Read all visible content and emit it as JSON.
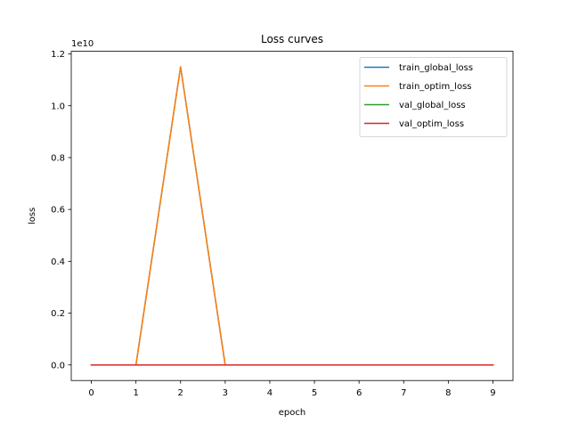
{
  "chart_data": {
    "type": "line",
    "title": "Loss curves",
    "xlabel": "epoch",
    "ylabel": "loss",
    "x": [
      0,
      1,
      2,
      3,
      4,
      5,
      6,
      7,
      8,
      9
    ],
    "xlim": [
      -0.45,
      9.45
    ],
    "ylim": [
      -0.06,
      1.21
    ],
    "y_offset_label": "1e10",
    "x_ticks": [
      "0",
      "1",
      "2",
      "3",
      "4",
      "5",
      "6",
      "7",
      "8",
      "9"
    ],
    "y_ticks": [
      "0.0",
      "0.2",
      "0.4",
      "0.6",
      "0.8",
      "1.0",
      "1.2"
    ],
    "y_tick_values": [
      0.0,
      0.2,
      0.4,
      0.6,
      0.8,
      1.0,
      1.2
    ],
    "grid": false,
    "legend_position": "top-right",
    "series": [
      {
        "name": "train_global_loss",
        "color": "#1f77b4",
        "values": [
          0.0,
          0.0,
          1.15,
          0.0,
          0.0,
          0.0,
          0.0,
          0.0,
          0.0,
          0.0
        ]
      },
      {
        "name": "train_optim_loss",
        "color": "#ff7f0e",
        "values": [
          0.0,
          0.0,
          1.15,
          0.0,
          0.0,
          0.0,
          0.0,
          0.0,
          0.0,
          0.0
        ]
      },
      {
        "name": "val_global_loss",
        "color": "#2ca02c",
        "values": [
          0.0,
          0.0,
          0.0,
          0.0,
          0.0,
          0.0,
          0.0,
          0.0,
          0.0,
          0.0
        ]
      },
      {
        "name": "val_optim_loss",
        "color": "#d62728",
        "values": [
          0.0,
          0.0,
          0.0,
          0.0,
          0.0,
          0.0,
          0.0,
          0.0,
          0.0,
          0.0
        ]
      }
    ]
  }
}
